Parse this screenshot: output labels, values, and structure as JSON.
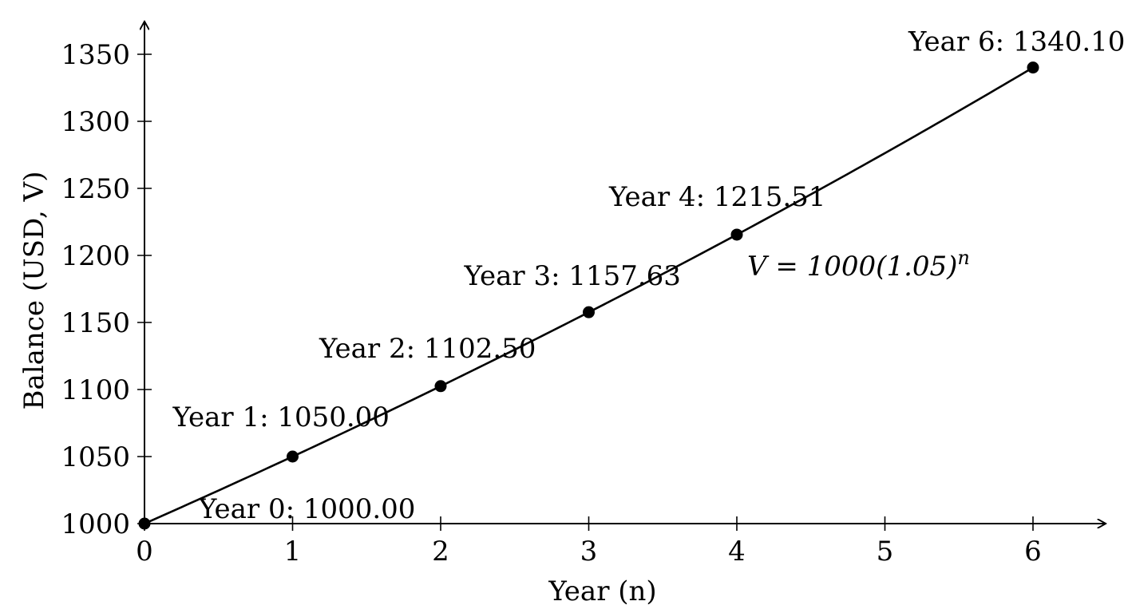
{
  "chart_data": {
    "type": "line",
    "title": "",
    "xlabel": "Year (n)",
    "ylabel": "Balance (USD, V)",
    "x": [
      0,
      1,
      2,
      3,
      4,
      5,
      6
    ],
    "series": [
      {
        "values": [
          1000.0,
          1050.0,
          1102.5,
          1157.63,
          1215.51,
          1276.28,
          1340.1
        ]
      }
    ],
    "markers": [
      {
        "x": 0,
        "y": 1000.0,
        "label": "Year 0: 1000.00"
      },
      {
        "x": 1,
        "y": 1050.0,
        "label": "Year 1: 1050.00"
      },
      {
        "x": 2,
        "y": 1102.5,
        "label": "Year 2: 1102.50"
      },
      {
        "x": 3,
        "y": 1157.63,
        "label": "Year 3: 1157.63"
      },
      {
        "x": 4,
        "y": 1215.51,
        "label": "Year 4: 1215.51"
      },
      {
        "x": 6,
        "y": 1340.1,
        "label": "Year 6: 1340.10"
      }
    ],
    "annotation": "V = 1000(1.05)^n",
    "xlim": [
      0,
      6.4
    ],
    "ylim": [
      1000,
      1370
    ],
    "xticks": [
      "0",
      "1",
      "2",
      "3",
      "4",
      "5",
      "6"
    ],
    "yticks": [
      "1000",
      "1050",
      "1100",
      "1150",
      "1200",
      "1250",
      "1300",
      "1350"
    ],
    "grid": false,
    "line_color": "#000000"
  }
}
